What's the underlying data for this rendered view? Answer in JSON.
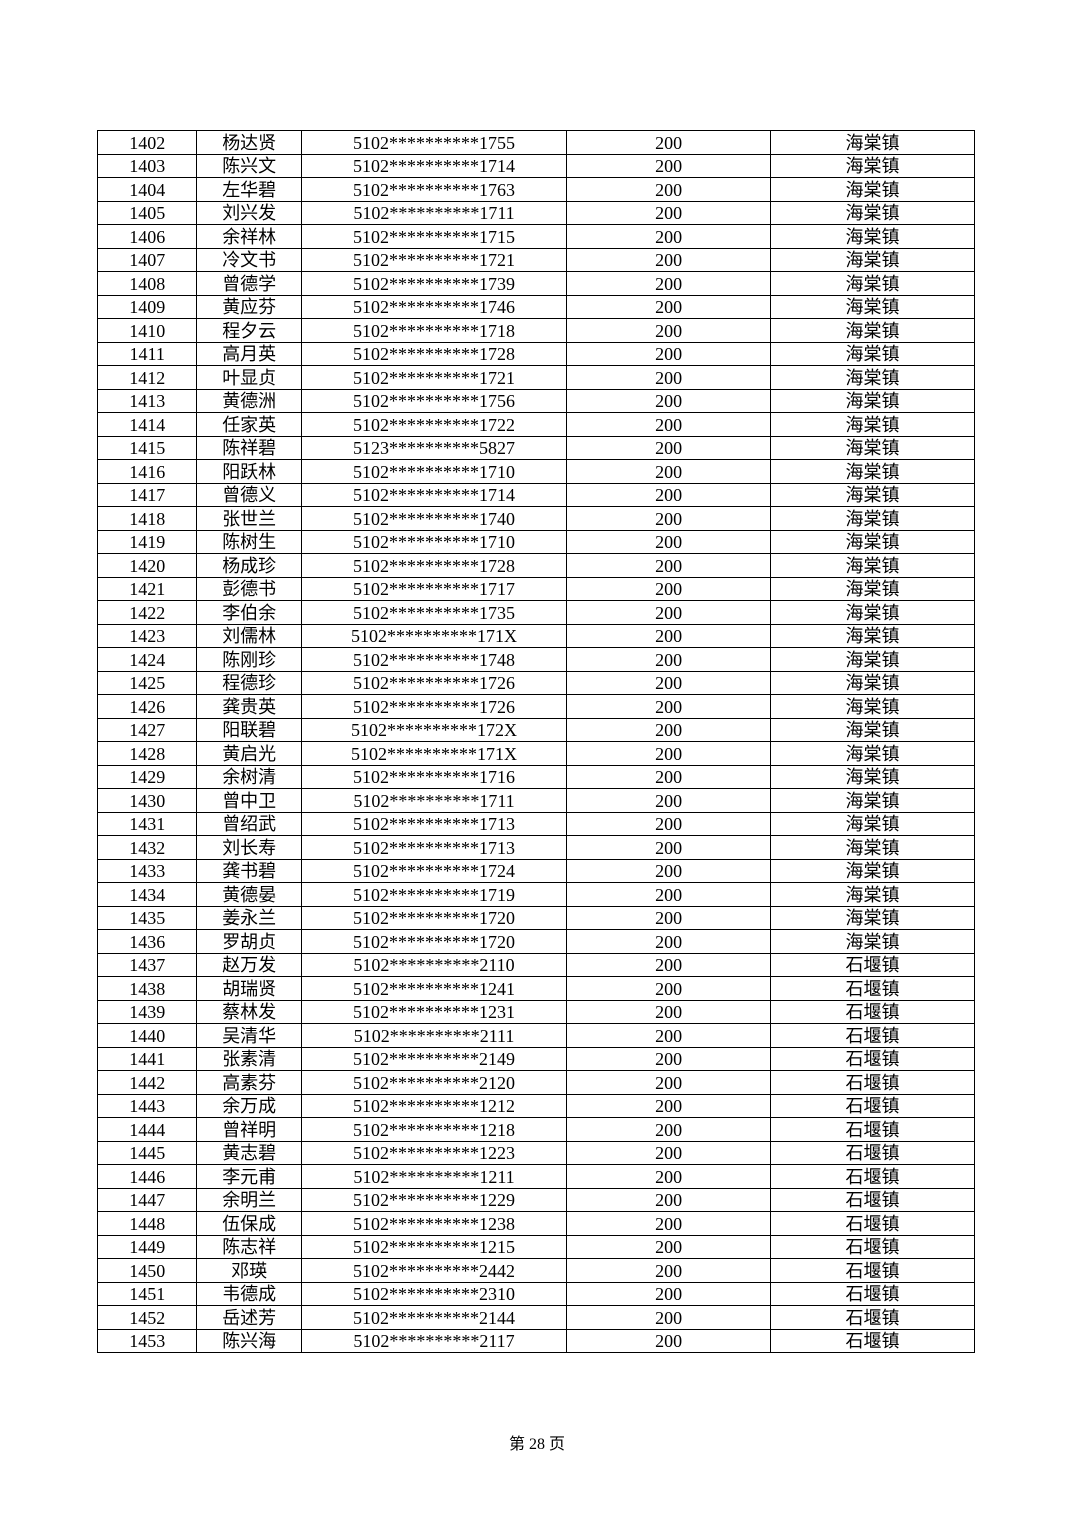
{
  "table": {
    "rows": [
      [
        "1402",
        "杨达贤",
        "5102**********1755",
        "200",
        "海棠镇"
      ],
      [
        "1403",
        "陈兴文",
        "5102**********1714",
        "200",
        "海棠镇"
      ],
      [
        "1404",
        "左华碧",
        "5102**********1763",
        "200",
        "海棠镇"
      ],
      [
        "1405",
        "刘兴发",
        "5102**********1711",
        "200",
        "海棠镇"
      ],
      [
        "1406",
        "余祥林",
        "5102**********1715",
        "200",
        "海棠镇"
      ],
      [
        "1407",
        "冷文书",
        "5102**********1721",
        "200",
        "海棠镇"
      ],
      [
        "1408",
        "曾德学",
        "5102**********1739",
        "200",
        "海棠镇"
      ],
      [
        "1409",
        "黄应芬",
        "5102**********1746",
        "200",
        "海棠镇"
      ],
      [
        "1410",
        "程夕云",
        "5102**********1718",
        "200",
        "海棠镇"
      ],
      [
        "1411",
        "高月英",
        "5102**********1728",
        "200",
        "海棠镇"
      ],
      [
        "1412",
        "叶显贞",
        "5102**********1721",
        "200",
        "海棠镇"
      ],
      [
        "1413",
        "黄德洲",
        "5102**********1756",
        "200",
        "海棠镇"
      ],
      [
        "1414",
        "任家英",
        "5102**********1722",
        "200",
        "海棠镇"
      ],
      [
        "1415",
        "陈祥碧",
        "5123**********5827",
        "200",
        "海棠镇"
      ],
      [
        "1416",
        "阳跃林",
        "5102**********1710",
        "200",
        "海棠镇"
      ],
      [
        "1417",
        "曾德义",
        "5102**********1714",
        "200",
        "海棠镇"
      ],
      [
        "1418",
        "张世兰",
        "5102**********1740",
        "200",
        "海棠镇"
      ],
      [
        "1419",
        "陈树生",
        "5102**********1710",
        "200",
        "海棠镇"
      ],
      [
        "1420",
        "杨成珍",
        "5102**********1728",
        "200",
        "海棠镇"
      ],
      [
        "1421",
        "彭德书",
        "5102**********1717",
        "200",
        "海棠镇"
      ],
      [
        "1422",
        "李伯余",
        "5102**********1735",
        "200",
        "海棠镇"
      ],
      [
        "1423",
        "刘儒林",
        "5102**********171X",
        "200",
        "海棠镇"
      ],
      [
        "1424",
        "陈刚珍",
        "5102**********1748",
        "200",
        "海棠镇"
      ],
      [
        "1425",
        "程德珍",
        "5102**********1726",
        "200",
        "海棠镇"
      ],
      [
        "1426",
        "龚贵英",
        "5102**********1726",
        "200",
        "海棠镇"
      ],
      [
        "1427",
        "阳联碧",
        "5102**********172X",
        "200",
        "海棠镇"
      ],
      [
        "1428",
        "黄启光",
        "5102**********171X",
        "200",
        "海棠镇"
      ],
      [
        "1429",
        "余树清",
        "5102**********1716",
        "200",
        "海棠镇"
      ],
      [
        "1430",
        "曾中卫",
        "5102**********1711",
        "200",
        "海棠镇"
      ],
      [
        "1431",
        "曾绍武",
        "5102**********1713",
        "200",
        "海棠镇"
      ],
      [
        "1432",
        "刘长寿",
        "5102**********1713",
        "200",
        "海棠镇"
      ],
      [
        "1433",
        "龚书碧",
        "5102**********1724",
        "200",
        "海棠镇"
      ],
      [
        "1434",
        "黄德晏",
        "5102**********1719",
        "200",
        "海棠镇"
      ],
      [
        "1435",
        "姜永兰",
        "5102**********1720",
        "200",
        "海棠镇"
      ],
      [
        "1436",
        "罗胡贞",
        "5102**********1720",
        "200",
        "海棠镇"
      ],
      [
        "1437",
        "赵万发",
        "5102**********2110",
        "200",
        "石堰镇"
      ],
      [
        "1438",
        "胡瑞贤",
        "5102**********1241",
        "200",
        "石堰镇"
      ],
      [
        "1439",
        "蔡林发",
        "5102**********1231",
        "200",
        "石堰镇"
      ],
      [
        "1440",
        "吴清华",
        "5102**********2111",
        "200",
        "石堰镇"
      ],
      [
        "1441",
        "张素清",
        "5102**********2149",
        "200",
        "石堰镇"
      ],
      [
        "1442",
        "高素芬",
        "5102**********2120",
        "200",
        "石堰镇"
      ],
      [
        "1443",
        "余万成",
        "5102**********1212",
        "200",
        "石堰镇"
      ],
      [
        "1444",
        "曾祥明",
        "5102**********1218",
        "200",
        "石堰镇"
      ],
      [
        "1445",
        "黄志碧",
        "5102**********1223",
        "200",
        "石堰镇"
      ],
      [
        "1446",
        "李元甫",
        "5102**********1211",
        "200",
        "石堰镇"
      ],
      [
        "1447",
        "余明兰",
        "5102**********1229",
        "200",
        "石堰镇"
      ],
      [
        "1448",
        "伍保成",
        "5102**********1238",
        "200",
        "石堰镇"
      ],
      [
        "1449",
        "陈志祥",
        "5102**********1215",
        "200",
        "石堰镇"
      ],
      [
        "1450",
        "邓瑛",
        "5102**********2442",
        "200",
        "石堰镇"
      ],
      [
        "1451",
        "韦德成",
        "5102**********2310",
        "200",
        "石堰镇"
      ],
      [
        "1452",
        "岳述芳",
        "5102**********2144",
        "200",
        "石堰镇"
      ],
      [
        "1453",
        "陈兴海",
        "5102**********2117",
        "200",
        "石堰镇"
      ]
    ]
  },
  "footer": {
    "page_label": "第 28 页"
  }
}
